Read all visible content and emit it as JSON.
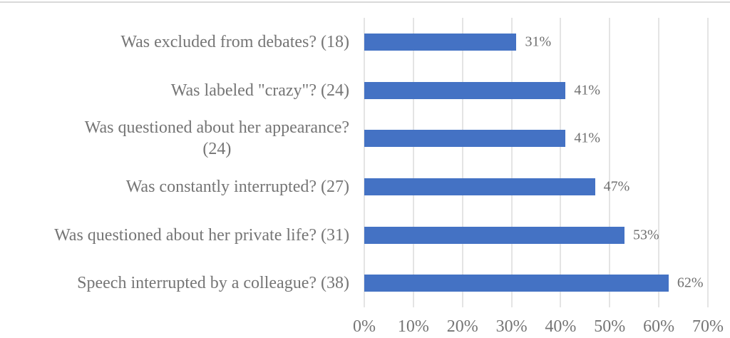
{
  "chart_data": {
    "type": "bar",
    "orientation": "horizontal",
    "title": "",
    "xlabel": "",
    "ylabel": "",
    "categories": [
      "Was excluded from debates? (18)",
      "Was labeled \"crazy\"? (24)",
      "Was questioned about her appearance?\n(24)",
      "Was constantly interrupted? (27)",
      "Was questioned about her private life? (31)",
      "Speech interrupted by a colleague? (38)"
    ],
    "values": [
      31,
      41,
      41,
      47,
      53,
      62
    ],
    "value_labels": [
      "31%",
      "41%",
      "41%",
      "47%",
      "53%",
      "62%"
    ],
    "counts": [
      18,
      24,
      24,
      27,
      31,
      38
    ],
    "x_ticks": [
      "0%",
      "10%",
      "20%",
      "30%",
      "40%",
      "50%",
      "60%",
      "70%"
    ],
    "xlim": [
      0,
      70
    ],
    "grid": "vertical-only",
    "legend": "none",
    "bar_color": "#4472C4",
    "text_color": "#757575",
    "value_text_color": "#6f6f6f",
    "gridline_color": "#e4e4e4"
  }
}
